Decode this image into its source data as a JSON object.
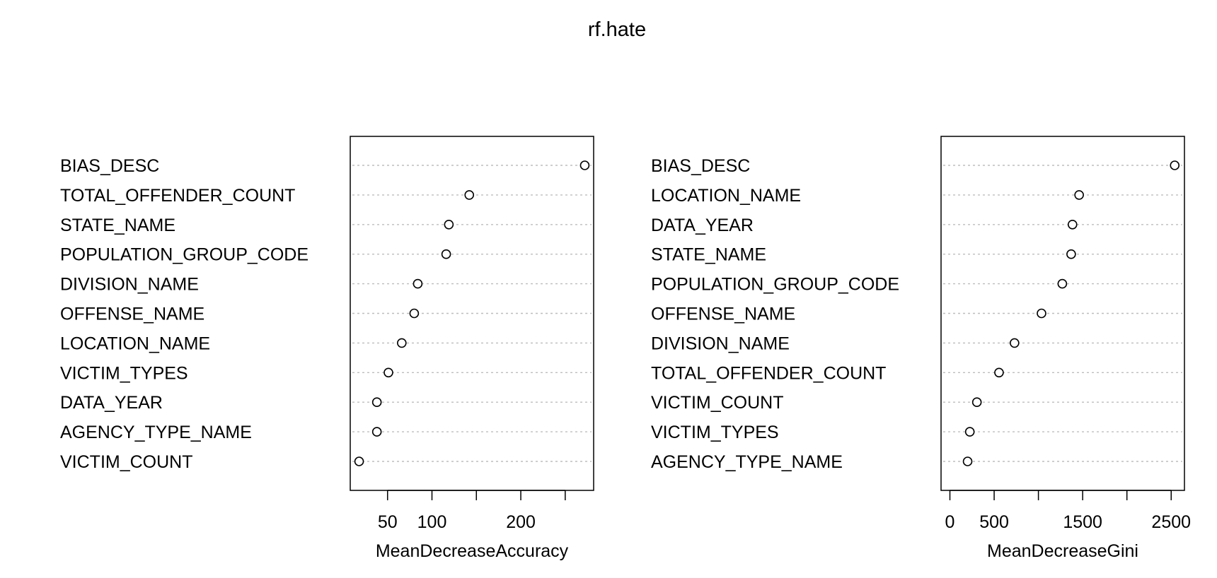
{
  "title": "rf.hate",
  "chart_data": [
    {
      "type": "scatter",
      "xlabel": "MeanDecreaseAccuracy",
      "xlim": [
        8,
        282
      ],
      "ticks": [
        0,
        50,
        100,
        150,
        200,
        250
      ],
      "tick_labels": [
        "",
        "50",
        "100",
        "",
        "200",
        ""
      ],
      "grid": "dotted horizontal",
      "categories": [
        "BIAS_DESC",
        "TOTAL_OFFENDER_COUNT",
        "STATE_NAME",
        "POPULATION_GROUP_CODE",
        "DIVISION_NAME",
        "OFFENSE_NAME",
        "LOCATION_NAME",
        "VICTIM_TYPES",
        "DATA_YEAR",
        "AGENCY_TYPE_NAME",
        "VICTIM_COUNT"
      ],
      "values": [
        272,
        142,
        119,
        116,
        84,
        80,
        66,
        51,
        38,
        38,
        18
      ]
    },
    {
      "type": "scatter",
      "xlabel": "MeanDecreaseGini",
      "xlim": [
        -100,
        2650
      ],
      "ticks": [
        0,
        500,
        1000,
        1500,
        2000,
        2500
      ],
      "tick_labels": [
        "0",
        "500",
        "",
        "1500",
        "",
        "2500"
      ],
      "grid": "dotted horizontal",
      "categories": [
        "BIAS_DESC",
        "LOCATION_NAME",
        "DATA_YEAR",
        "STATE_NAME",
        "POPULATION_GROUP_CODE",
        "OFFENSE_NAME",
        "DIVISION_NAME",
        "TOTAL_OFFENDER_COUNT",
        "VICTIM_COUNT",
        "VICTIM_TYPES",
        "AGENCY_TYPE_NAME"
      ],
      "values": [
        2540,
        1460,
        1385,
        1370,
        1270,
        1035,
        730,
        555,
        305,
        225,
        200
      ]
    }
  ]
}
